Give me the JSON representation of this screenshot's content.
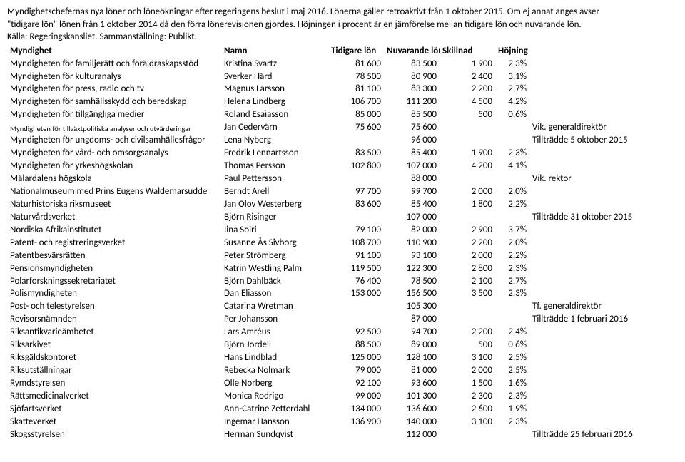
{
  "intro": {
    "l1": "Myndighetschefernas nya löner och löneökningar efter regeringens beslut i maj 2016. Lönerna gäller retroaktivt från 1 oktober 2015. Om ej annat anges avser",
    "l2": "\"tidigare lön\" lönen från 1 oktober 2014 då den förra lönerevisionen gjordes. Höjningen i procent är en jämförelse mellan tidigare lön och nuvarande lön.",
    "l3": "Källa: Regeringskansliet. Sammanställning: Publikt."
  },
  "headers": {
    "myndighet": "Myndighet",
    "namn": "Namn",
    "tidigare": "Tidigare lön",
    "nuvarande": "Nuvarande lön",
    "skillnad": "Skillnad",
    "hojning": "Höjning"
  },
  "rows": [
    {
      "m": "Myndigheten för familjerätt och föräldraskapsstöd",
      "n": "Kristina Svartz",
      "t": "81 600",
      "u": "83 500",
      "s": "1 900",
      "h": "2,3%",
      "note": ""
    },
    {
      "m": "Myndigheten för kulturanalys",
      "n": "Sverker Härd",
      "t": "78 500",
      "u": "80 900",
      "s": "2 400",
      "h": "3,1%",
      "note": ""
    },
    {
      "m": "Myndigheten för press, radio och tv",
      "n": "Magnus Larsson",
      "t": "81 100",
      "u": "83 300",
      "s": "2 200",
      "h": "2,7%",
      "note": ""
    },
    {
      "m": "Myndigheten för samhällsskydd och beredskap",
      "n": "Helena Lindberg",
      "t": "106 700",
      "u": "111 200",
      "s": "4 500",
      "h": "4,2%",
      "note": ""
    },
    {
      "m": "Myndigheten för tillgängliga medier",
      "n": "Roland Esaiasson",
      "t": "85 000",
      "u": "85 500",
      "s": "500",
      "h": "0,6%",
      "note": ""
    },
    {
      "m": "Myndigheten för tillväxtpolitiska analyser och utvärderingar",
      "n": "Jan Cedervärn",
      "t": "75 600",
      "u": "75 600",
      "s": "",
      "h": "",
      "note": "Vik. generaldirektör",
      "small": true
    },
    {
      "m": "Myndigheten för ungdoms- och civilsamhällesfrågor",
      "n": "Lena Nyberg",
      "t": "",
      "u": "96 000",
      "s": "",
      "h": "",
      "note": "Tillträdde 5 oktober 2015"
    },
    {
      "m": "Myndigheten för vård- och omsorgsanalys",
      "n": "Fredrik Lennartsson",
      "t": "83 500",
      "u": "85 400",
      "s": "1 900",
      "h": "2,3%",
      "note": ""
    },
    {
      "m": "Myndigheten för yrkeshögskolan",
      "n": "Thomas Persson",
      "t": "102 800",
      "u": "107 000",
      "s": "4 200",
      "h": "4,1%",
      "note": ""
    },
    {
      "m": "Mälardalens högskola",
      "n": "Paul Pettersson",
      "t": "",
      "u": "88 000",
      "s": "",
      "h": "",
      "note": "Vik. rektor"
    },
    {
      "m": "Nationalmuseum med Prins Eugens Waldemarsudde",
      "n": "Berndt Arell",
      "t": "97 700",
      "u": "99 700",
      "s": "2 000",
      "h": "2,0%",
      "note": ""
    },
    {
      "m": "Naturhistoriska riksmuseet",
      "n": "Jan Olov Westerberg",
      "t": "83 600",
      "u": "85 400",
      "s": "1 800",
      "h": "2,2%",
      "note": ""
    },
    {
      "m": "Naturvårdsverket",
      "n": "Björn Risinger",
      "t": "",
      "u": "107 000",
      "s": "",
      "h": "",
      "note": "Tillträdde 31 oktober 2015"
    },
    {
      "m": "Nordiska Afrikainstitutet",
      "n": "Iina Soiri",
      "t": "79 100",
      "u": "82 000",
      "s": "2 900",
      "h": "3,7%",
      "note": ""
    },
    {
      "m": "Patent- och registreringsverket",
      "n": "Susanne Ås Sivborg",
      "t": "108 700",
      "u": "110 900",
      "s": "2 200",
      "h": "2,0%",
      "note": ""
    },
    {
      "m": "Patentbesvärsrätten",
      "n": "Peter Strömberg",
      "t": "91 100",
      "u": "93 100",
      "s": "2 000",
      "h": "2,2%",
      "note": ""
    },
    {
      "m": "Pensionsmyndigheten",
      "n": "Katrin Westling Palm",
      "t": "119 500",
      "u": "122 300",
      "s": "2 800",
      "h": "2,3%",
      "note": ""
    },
    {
      "m": "Polarforskningssekretariatet",
      "n": "Björn Dahlbäck",
      "t": "76 400",
      "u": "78 500",
      "s": "2 100",
      "h": "2,7%",
      "note": ""
    },
    {
      "m": "Polismyndigheten",
      "n": "Dan Eliasson",
      "t": "153 000",
      "u": "156 500",
      "s": "3 500",
      "h": "2,3%",
      "note": ""
    },
    {
      "m": "Post- och telestyrelsen",
      "n": "Catarina Wretman",
      "t": "",
      "u": "105 300",
      "s": "",
      "h": "",
      "note": "Tf. generaldirektör"
    },
    {
      "m": "Revisorsnämnden",
      "n": "Per Johansson",
      "t": "",
      "u": "87 000",
      "s": "",
      "h": "",
      "note": "Tillträdde 1 februari 2016"
    },
    {
      "m": "Riksantikvarieämbetet",
      "n": "Lars Amréus",
      "t": "92 500",
      "u": "94 700",
      "s": "2 200",
      "h": "2,4%",
      "note": ""
    },
    {
      "m": "Riksarkivet",
      "n": "Björn Jordell",
      "t": "88 500",
      "u": "89 000",
      "s": "500",
      "h": "0,6%",
      "note": ""
    },
    {
      "m": "Riksgäldskontoret",
      "n": "Hans Lindblad",
      "t": "125 000",
      "u": "128 100",
      "s": "3 100",
      "h": "2,5%",
      "note": ""
    },
    {
      "m": "Riksutställningar",
      "n": "Rebecka Nolmark",
      "t": "79 000",
      "u": "81 000",
      "s": "2 000",
      "h": "2,5%",
      "note": ""
    },
    {
      "m": "Rymdstyrelsen",
      "n": "Olle Norberg",
      "t": "92 100",
      "u": "93 600",
      "s": "1 500",
      "h": "1,6%",
      "note": ""
    },
    {
      "m": "Rättsmedicinalverket",
      "n": "Monica Rodrigo",
      "t": "99 000",
      "u": "101 300",
      "s": "2 300",
      "h": "2,3%",
      "note": ""
    },
    {
      "m": "Sjöfartsverket",
      "n": "Ann-Catrine Zetterdahl",
      "t": "134 000",
      "u": "136 600",
      "s": "2 600",
      "h": "1,9%",
      "note": ""
    },
    {
      "m": "Skatteverket",
      "n": "Ingemar Hansson",
      "t": "136 900",
      "u": "140 000",
      "s": "3 100",
      "h": "2,3%",
      "note": ""
    },
    {
      "m": "Skogsstyrelsen",
      "n": "Herman Sundqvist",
      "t": "",
      "u": "112 000",
      "s": "",
      "h": "",
      "note": "Tillträdde 25 februari 2016"
    }
  ]
}
